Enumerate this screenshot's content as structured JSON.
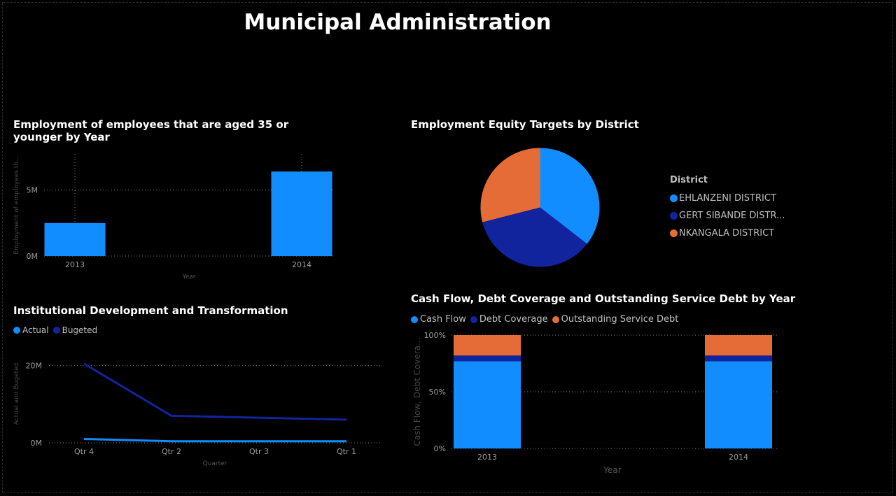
{
  "title": "Municipal Administration",
  "colors": {
    "actual": "#118DFF",
    "budgeted": "#12239E",
    "outstanding": "#E66C37",
    "grid": "#7f7f7f",
    "axis_text": "#9e9e9e"
  },
  "employment": {
    "title": "Employment of employees that are aged 35 or younger by Year",
    "ylabel": "Employment of employees th...",
    "xlabel": "Year",
    "ticks": [
      "0M",
      "5M"
    ],
    "chart_data": {
      "type": "bar",
      "title": "Employment of employees that are aged 35 or younger by Year",
      "categories": [
        "2013",
        "2014"
      ],
      "values": [
        2500000,
        6400000
      ],
      "xlabel": "Year",
      "ylabel": "Employment of employees th...",
      "ylim": [
        0,
        8000000
      ],
      "grid": true
    }
  },
  "equity": {
    "title": "Employment Equity Targets by District",
    "legend_title": "District",
    "chart_data": {
      "type": "pie",
      "title": "Employment Equity Targets by District",
      "labels": [
        "EHLANZENI DISTRICT",
        "GERT SIBANDE DISTR...",
        "NKANGALA DISTRICT"
      ],
      "values": [
        35.5,
        35.5,
        29
      ],
      "colors": [
        "#118DFF",
        "#12239E",
        "#E66C37"
      ],
      "legend": "right"
    }
  },
  "institutional": {
    "title": "Institutional Development and Transformation",
    "ylabel": "Actual and Bugeted",
    "xlabel": "Quarter",
    "ticks": [
      "0M",
      "20M"
    ],
    "chart_data": {
      "type": "line",
      "title": "Institutional Development and Transformation",
      "categories": [
        "Qtr 4",
        "Qtr 2",
        "Qtr 3",
        "Qtr 1"
      ],
      "series": [
        {
          "name": "Actual",
          "values": [
            1000000,
            400000,
            400000,
            400000
          ]
        },
        {
          "name": "Bugeted",
          "values": [
            20500000,
            7000000,
            6500000,
            6000000
          ]
        }
      ],
      "xlabel": "Quarter",
      "ylabel": "Actual and Bugeted",
      "ylim": [
        0,
        25000000
      ],
      "legend": "top-left",
      "grid": true
    }
  },
  "cashflow": {
    "title": "Cash Flow, Debt Coverage and Outstanding Service Debt by Year",
    "ylabel": "Cash Flow, Debt Covera...",
    "xlabel": "Year",
    "ticks": [
      "0%",
      "50%",
      "100%"
    ],
    "chart_data": {
      "type": "bar",
      "stacked": "100%",
      "title": "Cash Flow, Debt Coverage and Outstanding Service Debt by Year",
      "categories": [
        "2013",
        "2014"
      ],
      "series": [
        {
          "name": "Cash Flow",
          "values": [
            77,
            77
          ]
        },
        {
          "name": "Debt Coverage",
          "values": [
            5,
            5
          ]
        },
        {
          "name": "Outstanding Service Debt",
          "values": [
            18,
            18
          ]
        }
      ],
      "xlabel": "Year",
      "ylabel": "Cash Flow, Debt Covera...",
      "ylim": [
        0,
        100
      ],
      "legend": "top-left",
      "grid": true
    }
  }
}
